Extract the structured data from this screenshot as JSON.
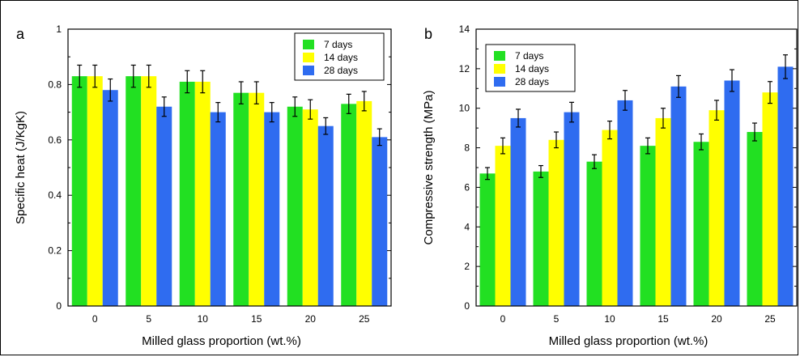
{
  "chart_data": [
    {
      "type": "bar",
      "panel_label": "a",
      "xlabel": "Milled glass proportion (wt.%)",
      "ylabel": "Specific heat (J/KgK)",
      "categories": [
        "0",
        "5",
        "10",
        "15",
        "20",
        "25"
      ],
      "ylim": [
        0,
        1
      ],
      "yticks": [
        "0",
        "0.2",
        "0.4",
        "0.6",
        "0.8",
        "1"
      ],
      "grid": false,
      "legend_position": "top-right",
      "series": [
        {
          "name": "7 days",
          "color": "#22e022",
          "values": [
            0.83,
            0.83,
            0.81,
            0.77,
            0.72,
            0.73
          ],
          "errors": [
            0.04,
            0.04,
            0.04,
            0.04,
            0.035,
            0.035
          ]
        },
        {
          "name": "14 days",
          "color": "#ffff00",
          "values": [
            0.83,
            0.83,
            0.81,
            0.77,
            0.71,
            0.74
          ],
          "errors": [
            0.04,
            0.04,
            0.04,
            0.04,
            0.035,
            0.035
          ]
        },
        {
          "name": "28 days",
          "color": "#2f6cf0",
          "values": [
            0.78,
            0.72,
            0.7,
            0.7,
            0.65,
            0.61
          ],
          "errors": [
            0.04,
            0.035,
            0.035,
            0.035,
            0.03,
            0.03
          ]
        }
      ]
    },
    {
      "type": "bar",
      "panel_label": "b",
      "xlabel": "Milled glass proportion (wt.%)",
      "ylabel": "Compressive strength (MPa)",
      "categories": [
        "0",
        "5",
        "10",
        "15",
        "20",
        "25"
      ],
      "ylim": [
        0,
        14
      ],
      "yticks": [
        "0",
        "2",
        "4",
        "6",
        "8",
        "10",
        "12",
        "14"
      ],
      "grid": false,
      "legend_position": "top-left",
      "series": [
        {
          "name": "7 days",
          "color": "#22e022",
          "values": [
            6.7,
            6.8,
            7.3,
            8.1,
            8.3,
            8.8
          ],
          "errors": [
            0.3,
            0.3,
            0.35,
            0.4,
            0.4,
            0.45
          ]
        },
        {
          "name": "14 days",
          "color": "#ffff00",
          "values": [
            8.1,
            8.4,
            8.9,
            9.5,
            9.9,
            10.8
          ],
          "errors": [
            0.4,
            0.4,
            0.45,
            0.5,
            0.5,
            0.55
          ]
        },
        {
          "name": "28 days",
          "color": "#2f6cf0",
          "values": [
            9.5,
            9.8,
            10.4,
            11.1,
            11.4,
            12.1
          ],
          "errors": [
            0.45,
            0.5,
            0.5,
            0.55,
            0.55,
            0.6
          ]
        }
      ]
    }
  ]
}
